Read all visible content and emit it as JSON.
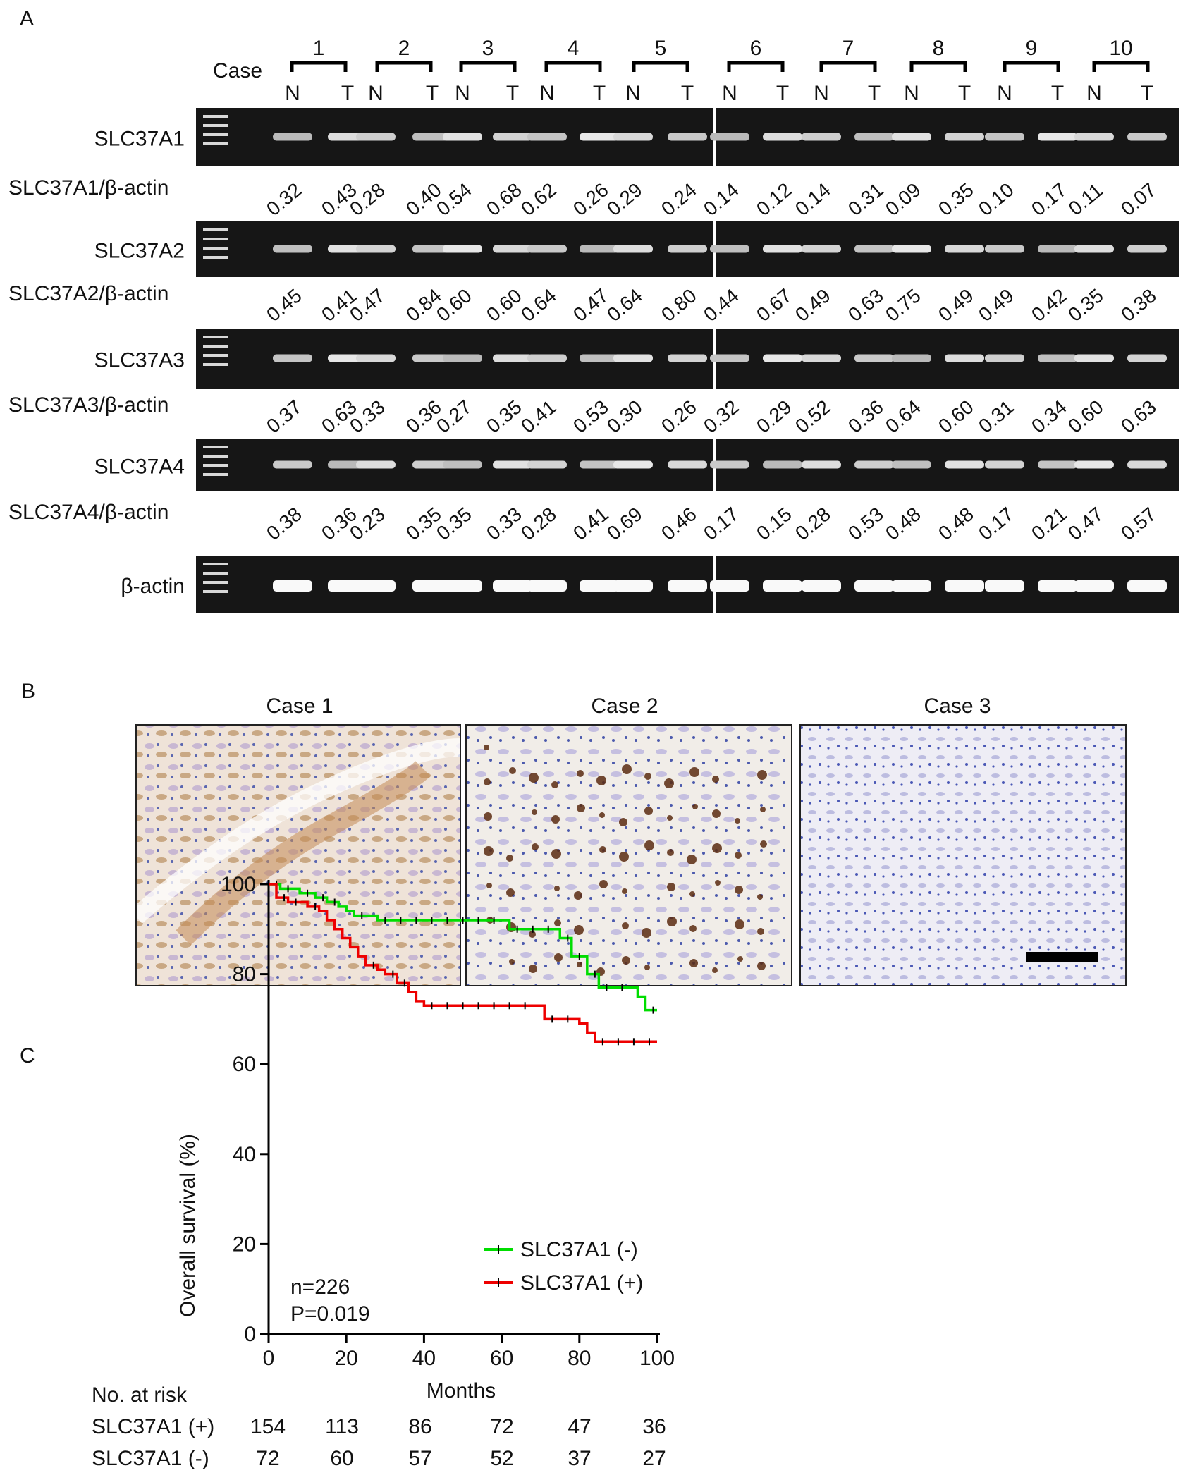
{
  "panel_labels": {
    "a": "A",
    "b": "B",
    "c": "C"
  },
  "panel_a": {
    "case_label": "Case",
    "cases": [
      "1",
      "2",
      "3",
      "4",
      "5",
      "6",
      "7",
      "8",
      "9",
      "10"
    ],
    "lane_labels": [
      "N",
      "T"
    ],
    "genes": [
      {
        "name": "SLC37A1",
        "ratio_label": "SLC37A1/β-actin",
        "ratios": [
          "0.32",
          "0.43",
          "0.28",
          "0.40",
          "0.54",
          "0.68",
          "0.62",
          "0.26",
          "0.29",
          "0.24",
          "0.14",
          "0.12",
          "0.14",
          "0.31",
          "0.09",
          "0.35",
          "0.10",
          "0.17",
          "0.11",
          "0.07"
        ]
      },
      {
        "name": "SLC37A2",
        "ratio_label": "SLC37A2/β-actin",
        "ratios": [
          "0.45",
          "0.41",
          "0.47",
          "0.84",
          "0.60",
          "0.60",
          "0.64",
          "0.47",
          "0.64",
          "0.80",
          "0.44",
          "0.67",
          "0.49",
          "0.63",
          "0.75",
          "0.49",
          "0.49",
          "0.42",
          "0.35",
          "0.38"
        ]
      },
      {
        "name": "SLC37A3",
        "ratio_label": "SLC37A3/β-actin",
        "ratios": [
          "0.37",
          "0.63",
          "0.33",
          "0.36",
          "0.27",
          "0.35",
          "0.41",
          "0.53",
          "0.30",
          "0.26",
          "0.32",
          "0.29",
          "0.52",
          "0.36",
          "0.64",
          "0.60",
          "0.31",
          "0.34",
          "0.60",
          "0.63"
        ]
      },
      {
        "name": "SLC37A4",
        "ratio_label": "SLC37A4/β-actin",
        "ratios": [
          "0.38",
          "0.36",
          "0.23",
          "0.35",
          "0.35",
          "0.33",
          "0.28",
          "0.41",
          "0.69",
          "0.46",
          "0.17",
          "0.15",
          "0.28",
          "0.53",
          "0.48",
          "0.48",
          "0.17",
          "0.21",
          "0.47",
          "0.57"
        ]
      }
    ],
    "actin_label": "β-actin"
  },
  "panel_b": {
    "case_titles": [
      "Case 1",
      "Case 2",
      "Case 3"
    ]
  },
  "chart_data": {
    "type": "line",
    "ylabel": "Overall survival (%)",
    "xlabel": "Months",
    "xlim": [
      0,
      100
    ],
    "ylim": [
      0,
      100
    ],
    "xticks": [
      0,
      20,
      40,
      60,
      80,
      100
    ],
    "yticks": [
      0,
      20,
      40,
      60,
      80,
      100
    ],
    "legend_position": "bottom-right",
    "annotation_n": "n=226",
    "annotation_p": "P=0.019",
    "series": [
      {
        "name": "SLC37A1 (-)",
        "color": "#00dd00",
        "points": [
          [
            0,
            100
          ],
          [
            3,
            99
          ],
          [
            8,
            98
          ],
          [
            12,
            97
          ],
          [
            15,
            96
          ],
          [
            18,
            95
          ],
          [
            20,
            94
          ],
          [
            22,
            93
          ],
          [
            28,
            92
          ],
          [
            40,
            92
          ],
          [
            60,
            92
          ],
          [
            62,
            90
          ],
          [
            73,
            90
          ],
          [
            75,
            88
          ],
          [
            78,
            84
          ],
          [
            82,
            80
          ],
          [
            85,
            77
          ],
          [
            95,
            75
          ],
          [
            97,
            72
          ],
          [
            100,
            72
          ]
        ]
      },
      {
        "name": "SLC37A1 (+)",
        "color": "#ee0000",
        "points": [
          [
            0,
            100
          ],
          [
            2,
            97
          ],
          [
            5,
            96
          ],
          [
            10,
            95
          ],
          [
            13,
            94
          ],
          [
            15,
            92
          ],
          [
            17,
            90
          ],
          [
            19,
            88
          ],
          [
            21,
            86
          ],
          [
            23,
            84
          ],
          [
            25,
            82
          ],
          [
            28,
            81
          ],
          [
            30,
            80
          ],
          [
            33,
            78
          ],
          [
            36,
            76
          ],
          [
            38,
            74
          ],
          [
            40,
            73
          ],
          [
            70,
            73
          ],
          [
            71,
            70
          ],
          [
            80,
            69
          ],
          [
            82,
            67
          ],
          [
            84,
            65
          ],
          [
            100,
            65
          ]
        ]
      }
    ]
  },
  "risk_table": {
    "title": "No. at risk",
    "rows": [
      {
        "label": "SLC37A1 (+)",
        "values": [
          "154",
          "113",
          "86",
          "72",
          "47",
          "36"
        ]
      },
      {
        "label": "SLC37A1 (-)",
        "values": [
          "72",
          "60",
          "57",
          "52",
          "37",
          "27"
        ]
      }
    ]
  }
}
